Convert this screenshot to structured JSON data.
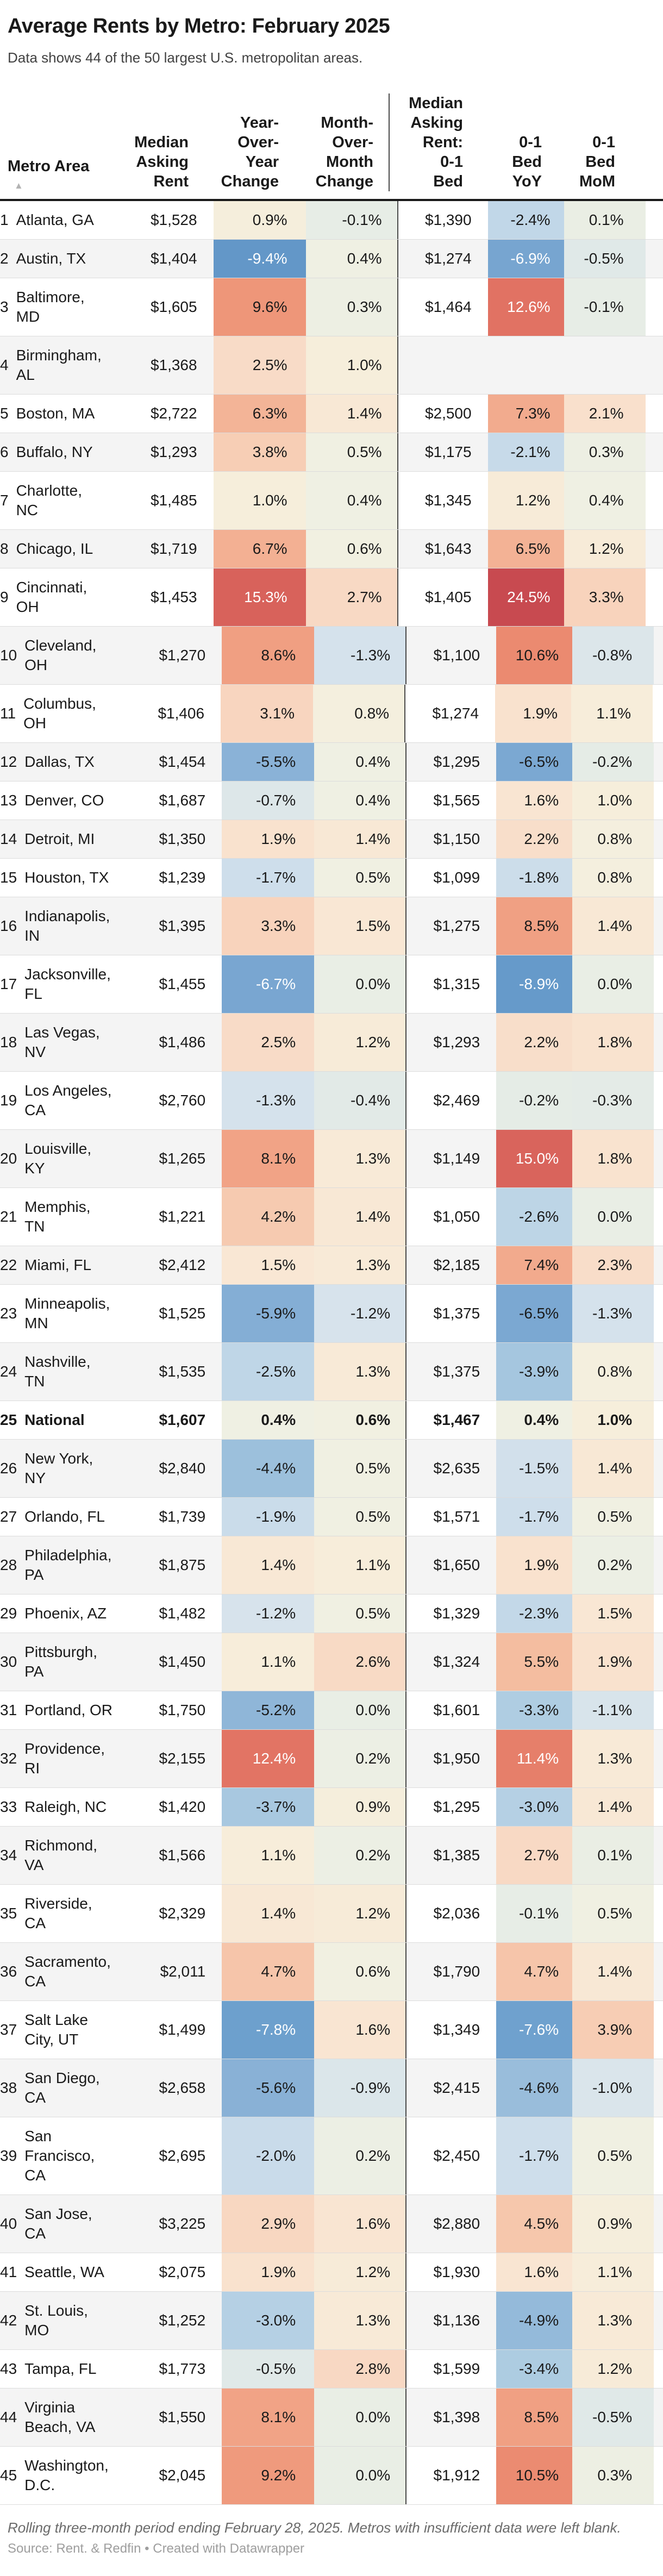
{
  "header": {
    "title": "Average Rents by Metro: February 2025",
    "subtitle": "Data shows 44 of the 50 largest U.S. metropolitan areas."
  },
  "chart_data": {
    "type": "table",
    "title": "Average Rents by Metro: February 2025",
    "columns": [
      {
        "key": "n",
        "label": "",
        "align": "left"
      },
      {
        "key": "metro",
        "label": "Metro Area",
        "align": "left",
        "sort_icon": "▲"
      },
      {
        "key": "rent",
        "label": "Median\nAsking\nRent",
        "align": "right"
      },
      {
        "key": "yoy",
        "label": "Year-\nOver-\nYear\nChange",
        "align": "right"
      },
      {
        "key": "mom",
        "label": "Month-\nOver-\nMonth\nChange",
        "align": "right"
      },
      {
        "key": "rent01",
        "label": "Median\nAsking\nRent:\n0-1\nBed",
        "align": "right"
      },
      {
        "key": "yoy01",
        "label": "0-1\nBed\nYoY",
        "align": "right"
      },
      {
        "key": "mom01",
        "label": "0-1\nBed\nMoM",
        "align": "right"
      }
    ],
    "rows": [
      {
        "n": "1",
        "metro": "Atlanta, GA",
        "rent": "$1,528",
        "yoy": 0.9,
        "mom": -0.1,
        "rent01": "$1,390",
        "yoy01": -2.4,
        "mom01": 0.1
      },
      {
        "n": "2",
        "metro": "Austin, TX",
        "rent": "$1,404",
        "yoy": -9.4,
        "mom": 0.4,
        "rent01": "$1,274",
        "yoy01": -6.9,
        "mom01": -0.5
      },
      {
        "n": "3",
        "metro": "Baltimore,\nMD",
        "rent": "$1,605",
        "yoy": 9.6,
        "mom": 0.3,
        "rent01": "$1,464",
        "yoy01": 12.6,
        "mom01": -0.1
      },
      {
        "n": "4",
        "metro": "Birmingham,\nAL",
        "rent": "$1,368",
        "yoy": 2.5,
        "mom": 1.0,
        "rent01": null,
        "yoy01": null,
        "mom01": null
      },
      {
        "n": "5",
        "metro": "Boston, MA",
        "rent": "$2,722",
        "yoy": 6.3,
        "mom": 1.4,
        "rent01": "$2,500",
        "yoy01": 7.3,
        "mom01": 2.1
      },
      {
        "n": "6",
        "metro": "Buffalo, NY",
        "rent": "$1,293",
        "yoy": 3.8,
        "mom": 0.5,
        "rent01": "$1,175",
        "yoy01": -2.1,
        "mom01": 0.3
      },
      {
        "n": "7",
        "metro": "Charlotte,\nNC",
        "rent": "$1,485",
        "yoy": 1.0,
        "mom": 0.4,
        "rent01": "$1,345",
        "yoy01": 1.2,
        "mom01": 0.4
      },
      {
        "n": "8",
        "metro": "Chicago, IL",
        "rent": "$1,719",
        "yoy": 6.7,
        "mom": 0.6,
        "rent01": "$1,643",
        "yoy01": 6.5,
        "mom01": 1.2
      },
      {
        "n": "9",
        "metro": "Cincinnati,\nOH",
        "rent": "$1,453",
        "yoy": 15.3,
        "mom": 2.7,
        "rent01": "$1,405",
        "yoy01": 24.5,
        "mom01": 3.3
      },
      {
        "n": "10",
        "metro": "Cleveland,\nOH",
        "rent": "$1,270",
        "yoy": 8.6,
        "mom": -1.3,
        "rent01": "$1,100",
        "yoy01": 10.6,
        "mom01": -0.8
      },
      {
        "n": "11",
        "metro": "Columbus,\nOH",
        "rent": "$1,406",
        "yoy": 3.1,
        "mom": 0.8,
        "rent01": "$1,274",
        "yoy01": 1.9,
        "mom01": 1.1
      },
      {
        "n": "12",
        "metro": "Dallas, TX",
        "rent": "$1,454",
        "yoy": -5.5,
        "mom": 0.4,
        "rent01": "$1,295",
        "yoy01": -6.5,
        "mom01": -0.2
      },
      {
        "n": "13",
        "metro": "Denver, CO",
        "rent": "$1,687",
        "yoy": -0.7,
        "mom": 0.4,
        "rent01": "$1,565",
        "yoy01": 1.6,
        "mom01": 1.0
      },
      {
        "n": "14",
        "metro": "Detroit, MI",
        "rent": "$1,350",
        "yoy": 1.9,
        "mom": 1.4,
        "rent01": "$1,150",
        "yoy01": 2.2,
        "mom01": 0.8
      },
      {
        "n": "15",
        "metro": "Houston, TX",
        "rent": "$1,239",
        "yoy": -1.7,
        "mom": 0.5,
        "rent01": "$1,099",
        "yoy01": -1.8,
        "mom01": 0.8
      },
      {
        "n": "16",
        "metro": "Indianapolis,\nIN",
        "rent": "$1,395",
        "yoy": 3.3,
        "mom": 1.5,
        "rent01": "$1,275",
        "yoy01": 8.5,
        "mom01": 1.4
      },
      {
        "n": "17",
        "metro": "Jacksonville,\nFL",
        "rent": "$1,455",
        "yoy": -6.7,
        "mom": 0.0,
        "rent01": "$1,315",
        "yoy01": -8.9,
        "mom01": 0.0
      },
      {
        "n": "18",
        "metro": "Las Vegas,\nNV",
        "rent": "$1,486",
        "yoy": 2.5,
        "mom": 1.2,
        "rent01": "$1,293",
        "yoy01": 2.2,
        "mom01": 1.8
      },
      {
        "n": "19",
        "metro": "Los Angeles,\nCA",
        "rent": "$2,760",
        "yoy": -1.3,
        "mom": -0.4,
        "rent01": "$2,469",
        "yoy01": -0.2,
        "mom01": -0.3
      },
      {
        "n": "20",
        "metro": "Louisville,\nKY",
        "rent": "$1,265",
        "yoy": 8.1,
        "mom": 1.3,
        "rent01": "$1,149",
        "yoy01": 15.0,
        "mom01": 1.8
      },
      {
        "n": "21",
        "metro": "Memphis,\nTN",
        "rent": "$1,221",
        "yoy": 4.2,
        "mom": 1.4,
        "rent01": "$1,050",
        "yoy01": -2.6,
        "mom01": 0.0
      },
      {
        "n": "22",
        "metro": "Miami, FL",
        "rent": "$2,412",
        "yoy": 1.5,
        "mom": 1.3,
        "rent01": "$2,185",
        "yoy01": 7.4,
        "mom01": 2.3
      },
      {
        "n": "23",
        "metro": "Minneapolis,\nMN",
        "rent": "$1,525",
        "yoy": -5.9,
        "mom": -1.2,
        "rent01": "$1,375",
        "yoy01": -6.5,
        "mom01": -1.3
      },
      {
        "n": "24",
        "metro": "Nashville,\nTN",
        "rent": "$1,535",
        "yoy": -2.5,
        "mom": 1.3,
        "rent01": "$1,375",
        "yoy01": -3.9,
        "mom01": 0.8
      },
      {
        "n": "25",
        "metro": "National",
        "bold": true,
        "rent": "$1,607",
        "yoy": 0.4,
        "mom": 0.6,
        "rent01": "$1,467",
        "yoy01": 0.4,
        "mom01": 1.0
      },
      {
        "n": "26",
        "metro": "New York,\nNY",
        "rent": "$2,840",
        "yoy": -4.4,
        "mom": 0.5,
        "rent01": "$2,635",
        "yoy01": -1.5,
        "mom01": 1.4
      },
      {
        "n": "27",
        "metro": "Orlando, FL",
        "rent": "$1,739",
        "yoy": -1.9,
        "mom": 0.5,
        "rent01": "$1,571",
        "yoy01": -1.7,
        "mom01": 0.5
      },
      {
        "n": "28",
        "metro": "Philadelphia,\nPA",
        "rent": "$1,875",
        "yoy": 1.4,
        "mom": 1.1,
        "rent01": "$1,650",
        "yoy01": 1.9,
        "mom01": 0.2
      },
      {
        "n": "29",
        "metro": "Phoenix, AZ",
        "rent": "$1,482",
        "yoy": -1.2,
        "mom": 0.5,
        "rent01": "$1,329",
        "yoy01": -2.3,
        "mom01": 1.5
      },
      {
        "n": "30",
        "metro": "Pittsburgh,\nPA",
        "rent": "$1,450",
        "yoy": 1.1,
        "mom": 2.6,
        "rent01": "$1,324",
        "yoy01": 5.5,
        "mom01": 1.9
      },
      {
        "n": "31",
        "metro": "Portland, OR",
        "rent": "$1,750",
        "yoy": -5.2,
        "mom": 0.0,
        "rent01": "$1,601",
        "yoy01": -3.3,
        "mom01": -1.1
      },
      {
        "n": "32",
        "metro": "Providence,\nRI",
        "rent": "$2,155",
        "yoy": 12.4,
        "mom": 0.2,
        "rent01": "$1,950",
        "yoy01": 11.4,
        "mom01": 1.3
      },
      {
        "n": "33",
        "metro": "Raleigh, NC",
        "rent": "$1,420",
        "yoy": -3.7,
        "mom": 0.9,
        "rent01": "$1,295",
        "yoy01": -3.0,
        "mom01": 1.4
      },
      {
        "n": "34",
        "metro": "Richmond,\nVA",
        "rent": "$1,566",
        "yoy": 1.1,
        "mom": 0.2,
        "rent01": "$1,385",
        "yoy01": 2.7,
        "mom01": 0.1
      },
      {
        "n": "35",
        "metro": "Riverside,\nCA",
        "rent": "$2,329",
        "yoy": 1.4,
        "mom": 1.2,
        "rent01": "$2,036",
        "yoy01": -0.1,
        "mom01": 0.5
      },
      {
        "n": "36",
        "metro": "Sacramento,\nCA",
        "rent": "$2,011",
        "yoy": 4.7,
        "mom": 0.6,
        "rent01": "$1,790",
        "yoy01": 4.7,
        "mom01": 1.4
      },
      {
        "n": "37",
        "metro": "Salt Lake\nCity, UT",
        "rent": "$1,499",
        "yoy": -7.8,
        "mom": 1.6,
        "rent01": "$1,349",
        "yoy01": -7.6,
        "mom01": 3.9
      },
      {
        "n": "38",
        "metro": "San Diego,\nCA",
        "rent": "$2,658",
        "yoy": -5.6,
        "mom": -0.9,
        "rent01": "$2,415",
        "yoy01": -4.6,
        "mom01": -1.0
      },
      {
        "n": "39",
        "metro": "San\nFrancisco,\nCA",
        "rent": "$2,695",
        "yoy": -2.0,
        "mom": 0.2,
        "rent01": "$2,450",
        "yoy01": -1.7,
        "mom01": 0.5
      },
      {
        "n": "40",
        "metro": "San Jose,\nCA",
        "rent": "$3,225",
        "yoy": 2.9,
        "mom": 1.6,
        "rent01": "$2,880",
        "yoy01": 4.5,
        "mom01": 0.9
      },
      {
        "n": "41",
        "metro": "Seattle, WA",
        "rent": "$2,075",
        "yoy": 1.9,
        "mom": 1.2,
        "rent01": "$1,930",
        "yoy01": 1.6,
        "mom01": 1.1
      },
      {
        "n": "42",
        "metro": "St. Louis,\nMO",
        "rent": "$1,252",
        "yoy": -3.0,
        "mom": 1.3,
        "rent01": "$1,136",
        "yoy01": -4.9,
        "mom01": 1.3
      },
      {
        "n": "43",
        "metro": "Tampa, FL",
        "rent": "$1,773",
        "yoy": -0.5,
        "mom": 2.8,
        "rent01": "$1,599",
        "yoy01": -3.4,
        "mom01": 1.2
      },
      {
        "n": "44",
        "metro": "Virginia\nBeach, VA",
        "rent": "$1,550",
        "yoy": 8.1,
        "mom": 0.0,
        "rent01": "$1,398",
        "yoy01": 8.5,
        "mom01": -0.5
      },
      {
        "n": "45",
        "metro": "Washington,\nD.C.",
        "rent": "$2,045",
        "yoy": 9.2,
        "mom": 0.0,
        "rent01": "$1,912",
        "yoy01": 10.5,
        "mom01": 0.3
      }
    ]
  },
  "colors": {
    "scale_stops": [
      [
        -10.0,
        "#5f93c6"
      ],
      [
        -7.8,
        "#6da0cd"
      ],
      [
        -6.6,
        "#7aa7d1"
      ],
      [
        -5.5,
        "#8ab2d7"
      ],
      [
        -4.4,
        "#9cc0dc"
      ],
      [
        -3.3,
        "#afcde2"
      ],
      [
        -2.2,
        "#c5d9e9"
      ],
      [
        -1.2,
        "#d7e3ec"
      ],
      [
        -0.5,
        "#e0e9e8"
      ],
      [
        0.0,
        "#e9eee5"
      ],
      [
        0.5,
        "#f0f0e2"
      ],
      [
        1.0,
        "#f6eedb"
      ],
      [
        1.6,
        "#f9e5d2"
      ],
      [
        2.7,
        "#f8d9c4"
      ],
      [
        3.9,
        "#f7cdb4"
      ],
      [
        5.0,
        "#f5c2a6"
      ],
      [
        6.5,
        "#f3b295"
      ],
      [
        8.0,
        "#f1a487"
      ],
      [
        9.6,
        "#ee9679"
      ],
      [
        10.6,
        "#eb8a70"
      ],
      [
        11.4,
        "#e67f6a"
      ],
      [
        12.6,
        "#e17263"
      ],
      [
        15.3,
        "#d8625b"
      ],
      [
        24.5,
        "#c84a50"
      ]
    ],
    "white_text_neg_max": -6.6,
    "white_text_pos_min": 11.0,
    "row_stripe": "#f4f4f4",
    "header_rule": "#1a1a1a",
    "row_border": "#dcdcdc",
    "column_separator": "#4a4a4a",
    "sort_arrow": "#b3b3b3"
  },
  "footer": {
    "note": "Rolling three-month period ending February 28, 2025. Metros with insufficient data were left blank.",
    "source_prefix": "Source: ",
    "source_name": "Rent. & Redfin",
    "separator": " • ",
    "credit": "Created with Datawrapper"
  }
}
